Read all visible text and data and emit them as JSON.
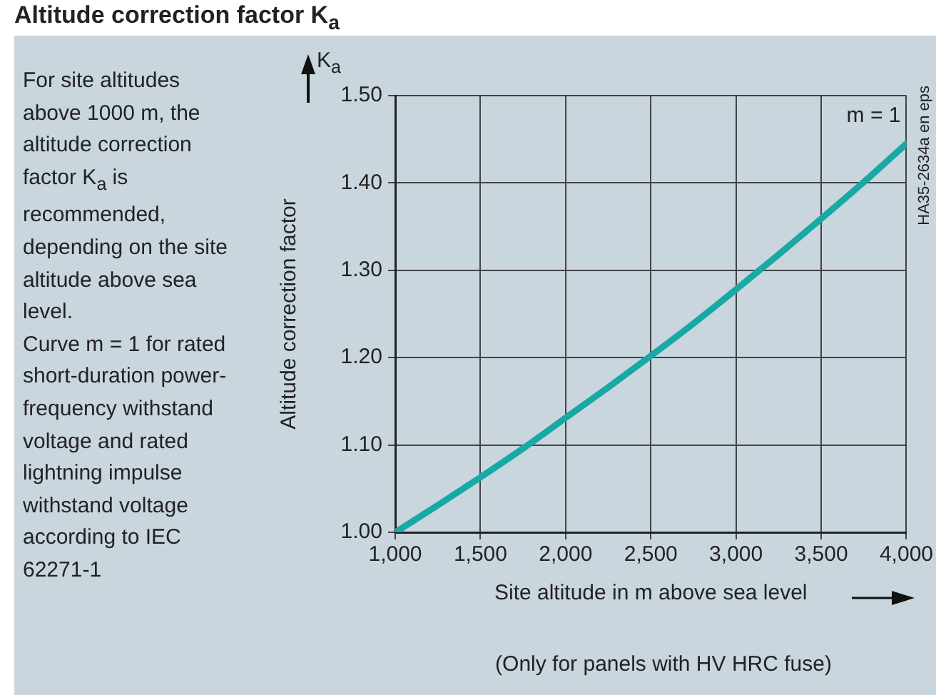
{
  "chart_data": {
    "type": "line",
    "title": "Altitude correction factor K$_{a}$",
    "xlabel": "Site altitude in m above sea level",
    "ylabel": "Altitude correction factor",
    "annotations": [
      "K$_{a}$",
      "For site altitudes above 1000 m, the altitude correction factor K$_{a}$ is recommended, depending on the site altitude above sea level.\nCurve m = 1 for rated short-duration power-frequency withstand voltage and rated lightning impulse withstand voltage according to IEC 62271-1",
      "(Only for panels with HV HRC fuse)",
      "HA35-2634a en eps"
    ],
    "x": [
      1000,
      1250,
      1500,
      1750,
      2000,
      2250,
      2500,
      2750,
      3000,
      3250,
      3500,
      3750,
      4000
    ],
    "series": [
      {
        "name": "m = 1",
        "color": "#19a9a5",
        "values": [
          1.0,
          1.031,
          1.063,
          1.096,
          1.131,
          1.166,
          1.202,
          1.239,
          1.278,
          1.318,
          1.359,
          1.401,
          1.445
        ]
      }
    ],
    "xlim": [
      1000,
      4000
    ],
    "xticks": [
      {
        "value": 1000,
        "label": "1,000"
      },
      {
        "value": 1500,
        "label": "1,500"
      },
      {
        "value": 2000,
        "label": "2,000"
      },
      {
        "value": 2500,
        "label": "2,500"
      },
      {
        "value": 3000,
        "label": "3,000"
      },
      {
        "value": 3500,
        "label": "3,500"
      },
      {
        "value": 4000,
        "label": "4,000"
      }
    ],
    "ylim": [
      1.0,
      1.5
    ],
    "yticks": [
      {
        "value": 1.0,
        "label": "1.00"
      },
      {
        "value": 1.1,
        "label": "1.10"
      },
      {
        "value": 1.2,
        "label": "1.20"
      },
      {
        "value": 1.3,
        "label": "1.30"
      },
      {
        "value": 1.4,
        "label": "1.40"
      },
      {
        "value": 1.5,
        "label": "1.50"
      }
    ],
    "grid": true,
    "legend": false,
    "marker": "none",
    "line_style": "solid"
  }
}
